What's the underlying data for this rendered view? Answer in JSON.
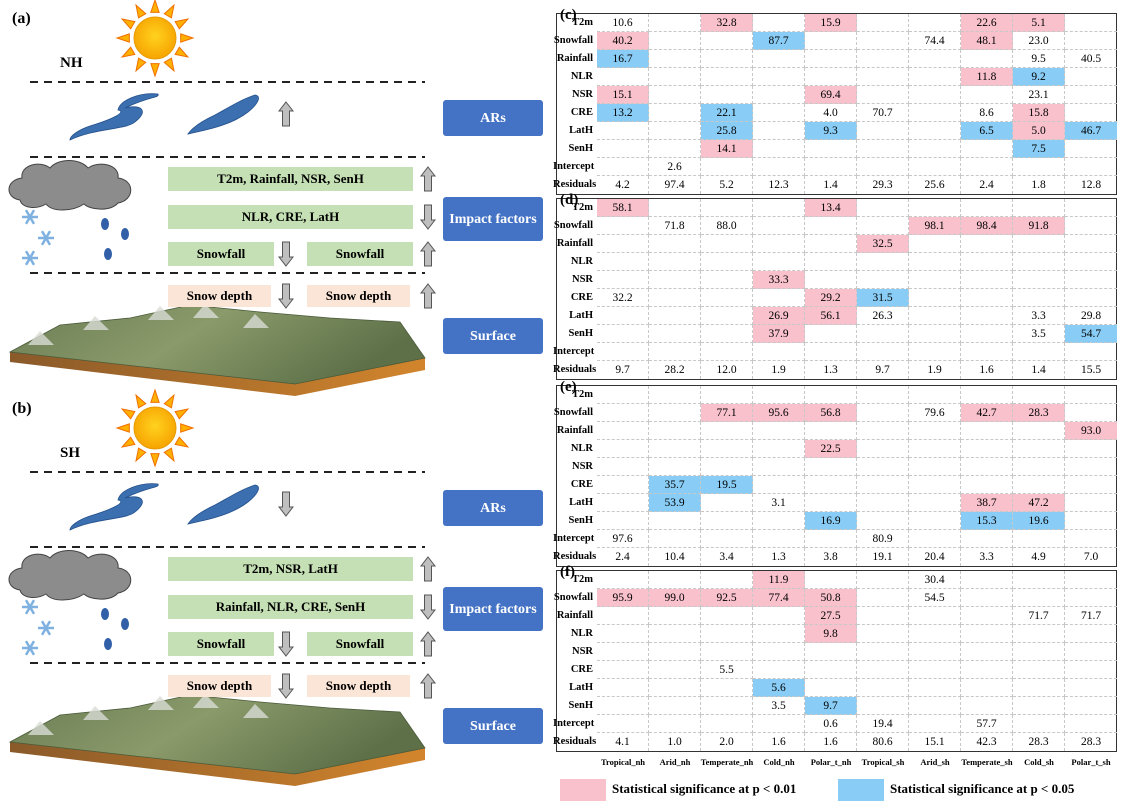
{
  "diagrams": [
    {
      "label": "(a)",
      "hemisphere": "NH",
      "ars_label": "ARs",
      "impact_label": "Impact factors",
      "surface_label": "Surface",
      "factor_rows": [
        "T2m, Rainfall, NSR, SenH",
        "NLR, CRE, LatH"
      ],
      "snowfall": [
        "Snowfall",
        "Snowfall"
      ],
      "snow_depth": [
        "Snow depth",
        "Snow depth"
      ]
    },
    {
      "label": "(b)",
      "hemisphere": "SH",
      "ars_label": "ARs",
      "impact_label": "Impact factors",
      "surface_label": "Surface",
      "factor_rows": [
        "T2m, NSR, LatH",
        "Rainfall, NLR, CRE, SenH"
      ],
      "snowfall": [
        "Snowfall",
        "Snowfall"
      ],
      "snow_depth": [
        "Snow depth",
        "Snow depth"
      ]
    }
  ],
  "tables": {
    "columns": [
      "Tropical_nh",
      "Arid_nh",
      "Temperate_nh",
      "Cold_nh",
      "Polar_t_nh",
      "Tropical_sh",
      "Arid_sh",
      "Temperate_sh",
      "Cold_sh",
      "Polar_t_sh"
    ],
    "rows": [
      "T2m",
      "Snowfall",
      "Rainfall",
      "NLR",
      "NSR",
      "CRE",
      "LatH",
      "SenH",
      "Intercept",
      "Residuals"
    ],
    "panels": [
      {
        "label": "(c)",
        "cells": [
          [
            [
              "10.6",
              null
            ],
            null,
            [
              "32.8",
              0
            ],
            null,
            [
              "15.9",
              0
            ],
            null,
            null,
            [
              "22.6",
              0
            ],
            [
              "5.1",
              0
            ],
            null
          ],
          [
            [
              "40.2",
              0
            ],
            null,
            null,
            [
              "87.7",
              1
            ],
            null,
            null,
            [
              "74.4",
              null
            ],
            [
              "48.1",
              0
            ],
            [
              "23.0",
              null
            ],
            null
          ],
          [
            [
              "16.7",
              1
            ],
            null,
            null,
            null,
            null,
            null,
            null,
            null,
            [
              "9.5",
              null
            ],
            [
              "40.5",
              null
            ]
          ],
          [
            null,
            null,
            null,
            null,
            null,
            null,
            null,
            [
              "11.8",
              0
            ],
            [
              "9.2",
              1
            ],
            null
          ],
          [
            [
              "15.1",
              0
            ],
            null,
            null,
            null,
            [
              "69.4",
              0
            ],
            null,
            null,
            null,
            [
              "23.1",
              null
            ],
            null
          ],
          [
            [
              "13.2",
              1
            ],
            null,
            [
              "22.1",
              1
            ],
            null,
            [
              "4.0",
              null
            ],
            [
              "70.7",
              null
            ],
            null,
            [
              "8.6",
              null
            ],
            [
              "15.8",
              0
            ],
            null
          ],
          [
            null,
            null,
            [
              "25.8",
              1
            ],
            null,
            [
              "9.3",
              1
            ],
            null,
            null,
            [
              "6.5",
              1
            ],
            [
              "5.0",
              0
            ],
            [
              "46.7",
              1
            ]
          ],
          [
            null,
            null,
            [
              "14.1",
              0
            ],
            null,
            null,
            null,
            null,
            null,
            [
              "7.5",
              1
            ],
            null
          ],
          [
            null,
            [
              "2.6",
              null
            ],
            null,
            null,
            null,
            null,
            null,
            null,
            null,
            null
          ],
          [
            [
              "4.2",
              null
            ],
            [
              "97.4",
              null
            ],
            [
              "5.2",
              null
            ],
            [
              "12.3",
              null
            ],
            [
              "1.4",
              null
            ],
            [
              "29.3",
              null
            ],
            [
              "25.6",
              null
            ],
            [
              "2.4",
              null
            ],
            [
              "1.8",
              null
            ],
            [
              "12.8",
              null
            ]
          ]
        ]
      },
      {
        "label": "(d)",
        "cells": [
          [
            [
              "58.1",
              0
            ],
            null,
            null,
            null,
            [
              "13.4",
              0
            ],
            null,
            null,
            null,
            null,
            null
          ],
          [
            null,
            [
              "71.8",
              null
            ],
            [
              "88.0",
              null
            ],
            null,
            null,
            null,
            [
              "98.1",
              0
            ],
            [
              "98.4",
              0
            ],
            [
              "91.8",
              0
            ],
            null
          ],
          [
            null,
            null,
            null,
            null,
            null,
            [
              "32.5",
              0
            ],
            null,
            null,
            null,
            null
          ],
          [
            null,
            null,
            null,
            null,
            null,
            null,
            null,
            null,
            null,
            null
          ],
          [
            null,
            null,
            null,
            [
              "33.3",
              0
            ],
            null,
            null,
            null,
            null,
            null,
            null
          ],
          [
            [
              "32.2",
              null
            ],
            null,
            null,
            null,
            [
              "29.2",
              0
            ],
            [
              "31.5",
              1
            ],
            null,
            null,
            null,
            null
          ],
          [
            null,
            null,
            null,
            [
              "26.9",
              0
            ],
            [
              "56.1",
              0
            ],
            [
              "26.3",
              null
            ],
            null,
            null,
            [
              "3.3",
              null
            ],
            [
              "29.8",
              null
            ]
          ],
          [
            null,
            null,
            null,
            [
              "37.9",
              0
            ],
            null,
            null,
            null,
            null,
            [
              "3.5",
              null
            ],
            [
              "54.7",
              1
            ]
          ],
          [
            null,
            null,
            null,
            null,
            null,
            null,
            null,
            null,
            null,
            null
          ],
          [
            [
              "9.7",
              null
            ],
            [
              "28.2",
              null
            ],
            [
              "12.0",
              null
            ],
            [
              "1.9",
              null
            ],
            [
              "1.3",
              null
            ],
            [
              "9.7",
              null
            ],
            [
              "1.9",
              null
            ],
            [
              "1.6",
              null
            ],
            [
              "1.4",
              null
            ],
            [
              "15.5",
              null
            ]
          ]
        ]
      },
      {
        "label": "(e)",
        "cells": [
          [
            null,
            null,
            null,
            null,
            null,
            null,
            null,
            null,
            null,
            null
          ],
          [
            null,
            null,
            [
              "77.1",
              0
            ],
            [
              "95.6",
              0
            ],
            [
              "56.8",
              0
            ],
            null,
            [
              "79.6",
              null
            ],
            [
              "42.7",
              0
            ],
            [
              "28.3",
              0
            ],
            null
          ],
          [
            null,
            null,
            null,
            null,
            null,
            null,
            null,
            null,
            null,
            [
              "93.0",
              0
            ]
          ],
          [
            null,
            null,
            null,
            null,
            [
              "22.5",
              0
            ],
            null,
            null,
            null,
            null,
            null
          ],
          [
            null,
            null,
            null,
            null,
            null,
            null,
            null,
            null,
            null,
            null
          ],
          [
            null,
            [
              "35.7",
              1
            ],
            [
              "19.5",
              1
            ],
            null,
            null,
            null,
            null,
            null,
            null,
            null
          ],
          [
            null,
            [
              "53.9",
              1
            ],
            null,
            [
              "3.1",
              null
            ],
            null,
            null,
            null,
            [
              "38.7",
              0
            ],
            [
              "47.2",
              0
            ],
            null
          ],
          [
            null,
            null,
            null,
            null,
            [
              "16.9",
              1
            ],
            null,
            null,
            [
              "15.3",
              1
            ],
            [
              "19.6",
              1
            ],
            null
          ],
          [
            [
              "97.6",
              null
            ],
            null,
            null,
            null,
            null,
            [
              "80.9",
              null
            ],
            null,
            null,
            null,
            null
          ],
          [
            [
              "2.4",
              null
            ],
            [
              "10.4",
              null
            ],
            [
              "3.4",
              null
            ],
            [
              "1.3",
              null
            ],
            [
              "3.8",
              null
            ],
            [
              "19.1",
              null
            ],
            [
              "20.4",
              null
            ],
            [
              "3.3",
              null
            ],
            [
              "4.9",
              null
            ],
            [
              "7.0",
              null
            ]
          ]
        ]
      },
      {
        "label": "(f)",
        "cells": [
          [
            null,
            null,
            null,
            [
              "11.9",
              0
            ],
            null,
            null,
            [
              "30.4",
              null
            ],
            null,
            null,
            null
          ],
          [
            [
              "95.9",
              0
            ],
            [
              "99.0",
              0
            ],
            [
              "92.5",
              0
            ],
            [
              "77.4",
              0
            ],
            [
              "50.8",
              0
            ],
            null,
            [
              "54.5",
              null
            ],
            null,
            null,
            null
          ],
          [
            null,
            null,
            null,
            null,
            [
              "27.5",
              0
            ],
            null,
            null,
            null,
            [
              "71.7",
              null
            ],
            [
              "71.7",
              null
            ]
          ],
          [
            null,
            null,
            null,
            null,
            [
              "9.8",
              0
            ],
            null,
            null,
            null,
            null,
            null
          ],
          [
            null,
            null,
            null,
            null,
            null,
            null,
            null,
            null,
            null,
            null
          ],
          [
            null,
            null,
            [
              "5.5",
              null
            ],
            null,
            null,
            null,
            null,
            null,
            null,
            null
          ],
          [
            null,
            null,
            null,
            [
              "5.6",
              1
            ],
            null,
            null,
            null,
            null,
            null,
            null
          ],
          [
            null,
            null,
            null,
            [
              "3.5",
              null
            ],
            [
              "9.7",
              1
            ],
            null,
            null,
            null,
            null,
            null
          ],
          [
            null,
            null,
            null,
            null,
            [
              "0.6",
              null
            ],
            [
              "19.4",
              null
            ],
            null,
            [
              "57.7",
              null
            ],
            null,
            null
          ],
          [
            [
              "4.1",
              null
            ],
            [
              "1.0",
              null
            ],
            [
              "2.0",
              null
            ],
            [
              "1.6",
              null
            ],
            [
              "1.6",
              null
            ],
            [
              "80.6",
              null
            ],
            [
              "15.1",
              null
            ],
            [
              "42.3",
              null
            ],
            [
              "28.3",
              null
            ],
            [
              "28.3",
              null
            ]
          ]
        ]
      }
    ]
  },
  "legend": [
    {
      "color": "#f8c1cc",
      "label": "Statistical significance at p < 0.01"
    },
    {
      "color": "#89cdf6",
      "label": "Statistical significance at p < 0.05"
    }
  ]
}
